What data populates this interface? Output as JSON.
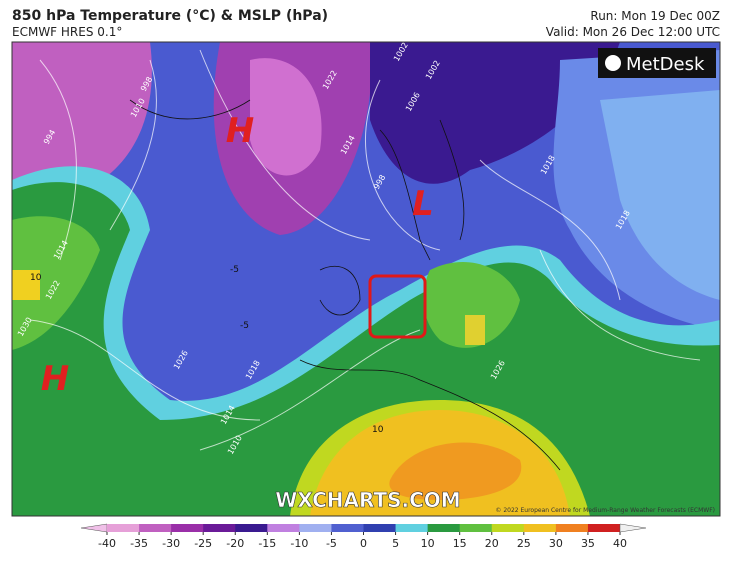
{
  "header": {
    "title": "850 hPa Temperature (°C) & MSLP (hPa)",
    "subtitle": "ECMWF HRES 0.1°",
    "run": "Run: Mon 19 Dec 00Z",
    "valid": "Valid: Mon 26 Dec 12:00 UTC"
  },
  "logo": "MetDesk",
  "map": {
    "pressure_centers": [
      "H",
      "H",
      "L"
    ],
    "isobar_labels": [
      "998",
      "1010",
      "1022",
      "1002",
      "1006",
      "1014",
      "998",
      "1018",
      "1018",
      "1014",
      "1022",
      "1030",
      "1026",
      "1018",
      "1014",
      "1010",
      "1026",
      "994",
      "1002"
    ],
    "temperature_labels": [
      "-5",
      "-5",
      "10",
      "10"
    ]
  },
  "watermark": "WXCHARTS.COM",
  "copyright": "© 2022 European Centre for Medium-Range Weather Forecasts (ECMWF)",
  "colorbar": {
    "ticks": [
      -40,
      -35,
      -30,
      -25,
      -20,
      -15,
      -10,
      -5,
      0,
      5,
      10,
      15,
      20,
      25,
      30,
      35,
      40
    ],
    "colors": [
      "#e6a0d8",
      "#c060c0",
      "#9a2fa8",
      "#6a1a98",
      "#3a1a90",
      "#c080e0",
      "#a0b0f0",
      "#5060d0",
      "#3040b0",
      "#60d0e0",
      "#2a9a40",
      "#60c040",
      "#c0d820",
      "#f0c020",
      "#f08020",
      "#d02020"
    ]
  }
}
